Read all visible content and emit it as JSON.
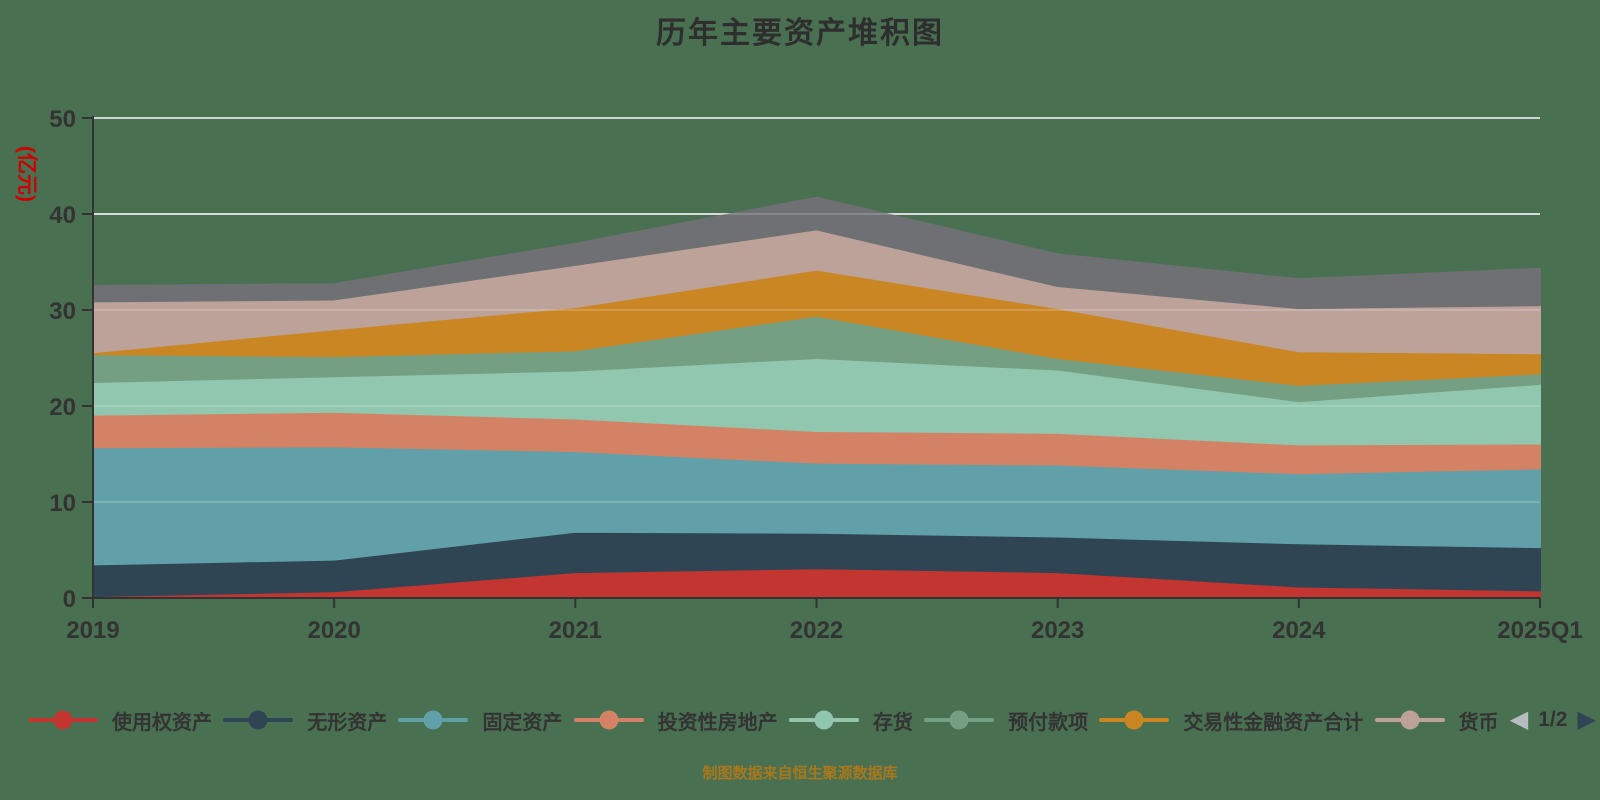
{
  "title": "历年主要资产堆积图",
  "source_note": "制图数据来自恒生聚源数据库",
  "colors": {
    "background": "#4a7052",
    "gridline": "#d2d2d2",
    "gridline_overlay": "rgba(255,255,255,0.18)",
    "axis": "#333333",
    "title_text": "#2e2e2e",
    "axis_label": "#333333",
    "y_axis_name": "#cc0000",
    "legend_text": "#333333",
    "source_note_text": "#a9781c",
    "pager_prev": "#b7bcc0",
    "pager_next": "#2f4554"
  },
  "y_axis": {
    "name": "(亿元)"
  },
  "legend": {
    "items": [
      {
        "label": "使用权资产",
        "color": "#c23531"
      },
      {
        "label": "无形资产",
        "color": "#2f4554"
      },
      {
        "label": "固定资产",
        "color": "#61a0a8"
      },
      {
        "label": "投资性房地产",
        "color": "#d48265"
      },
      {
        "label": "存货",
        "color": "#91c7ae"
      },
      {
        "label": "预付款项",
        "color": "#749f83"
      },
      {
        "label": "交易性金融资产合计",
        "color": "#ca8622"
      },
      {
        "label": "货币",
        "color": "#bda29a"
      }
    ],
    "pager": "1/2"
  },
  "chart_data": {
    "type": "area",
    "stacked": true,
    "title": "历年主要资产堆积图",
    "xlabel": "",
    "ylabel": "(亿元)",
    "ylim": [
      0,
      50
    ],
    "yticks": [
      0,
      10,
      20,
      30,
      40,
      50
    ],
    "grid": true,
    "legend_position": "bottom",
    "categories": [
      "2019",
      "2020",
      "2021",
      "2022",
      "2023",
      "2024",
      "2025Q1"
    ],
    "series": [
      {
        "name": "使用权资产",
        "color": "#c23531",
        "values": [
          0.2,
          0.7,
          2.7,
          3.1,
          2.7,
          1.2,
          0.8
        ]
      },
      {
        "name": "无形资产",
        "color": "#2f4554",
        "values": [
          3.3,
          3.3,
          4.2,
          3.7,
          3.7,
          4.5,
          4.5
        ]
      },
      {
        "name": "固定资产",
        "color": "#61a0a8",
        "values": [
          12.2,
          11.8,
          8.4,
          7.3,
          7.5,
          7.3,
          8.2
        ]
      },
      {
        "name": "投资性房地产",
        "color": "#d48265",
        "values": [
          3.4,
          3.6,
          3.4,
          3.3,
          3.3,
          3.0,
          2.6
        ]
      },
      {
        "name": "存货",
        "color": "#91c7ae",
        "values": [
          3.4,
          3.7,
          5.0,
          7.6,
          6.6,
          4.5,
          6.2
        ]
      },
      {
        "name": "预付款项",
        "color": "#749f83",
        "values": [
          2.9,
          2.1,
          2.1,
          4.4,
          1.2,
          1.7,
          1.1
        ]
      },
      {
        "name": "交易性金融资产合计",
        "color": "#ca8622",
        "values": [
          0.2,
          2.8,
          4.5,
          4.8,
          5.2,
          3.5,
          2.1
        ]
      },
      {
        "name": "货币",
        "color": "#bda29a",
        "values": [
          5.3,
          3.1,
          4.4,
          4.2,
          2.3,
          4.5,
          5.0
        ]
      },
      {
        "name": "",
        "color": "#6e7074",
        "values": [
          1.6,
          1.6,
          2.2,
          3.3,
          3.3,
          3.0,
          3.8
        ]
      }
    ]
  }
}
